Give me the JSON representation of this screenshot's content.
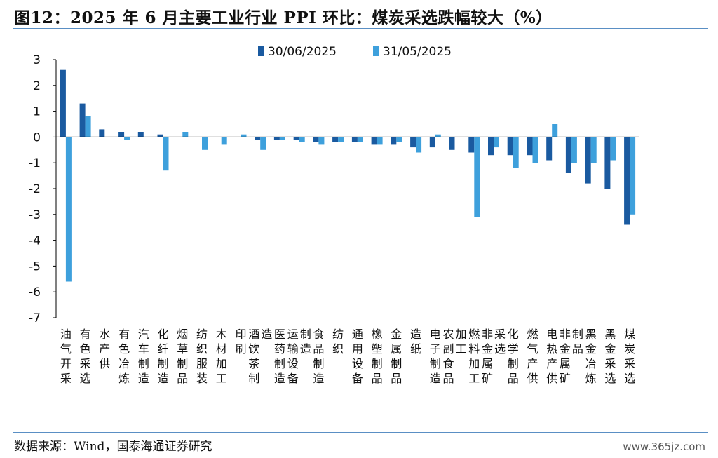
{
  "title": "图12：2025 年 6 月主要工业行业 PPI 环比：煤炭采选跌幅较大（%）",
  "source": "数据来源：Wind，国泰海通证券研究",
  "watermark": "www.365jz.com",
  "colors": {
    "series1": "#1a5aa0",
    "series2": "#3ea0dc",
    "rule": "#5a8fc4"
  },
  "chart_data": {
    "type": "bar",
    "ylim": [
      -7,
      3
    ],
    "yticks": [
      3,
      2,
      1,
      0,
      -1,
      -2,
      -3,
      -4,
      -5,
      -6,
      -7
    ],
    "grid": false,
    "legend_position": "top-center",
    "categories": [
      "油气开采",
      "有色采选",
      "水产供",
      "有色冶炼",
      "汽车制造",
      "化纤制造",
      "烟草制品",
      "纺织服装",
      "木材加工",
      "印刷",
      "酒饮茶制造",
      "医药制造",
      "运输设备制造",
      "食品制造",
      "纺织",
      "通用设备",
      "橡塑制品",
      "金属制品",
      "造纸",
      "电子制造",
      "农副食品加工",
      "燃料加工",
      "非金属矿采选",
      "化学制品",
      "燃气产供",
      "电热产供",
      "非金属矿制品",
      "黑金冶炼",
      "黑金采选",
      "煤炭采选"
    ],
    "series": [
      {
        "name": "30/06/2025",
        "values": [
          2.6,
          1.3,
          0.3,
          0.2,
          0.2,
          0.1,
          0,
          0,
          0,
          0,
          -0.1,
          -0.1,
          -0.1,
          -0.2,
          -0.2,
          -0.2,
          -0.3,
          -0.3,
          -0.4,
          -0.4,
          -0.5,
          -0.6,
          -0.7,
          -0.7,
          -0.7,
          -0.9,
          -1.4,
          -1.8,
          -2.0,
          -3.4
        ]
      },
      {
        "name": "31/05/2025",
        "values": [
          -5.6,
          0.8,
          0,
          -0.1,
          0,
          -1.3,
          0.2,
          -0.5,
          -0.3,
          0.1,
          -0.5,
          -0.1,
          -0.2,
          -0.3,
          -0.2,
          -0.2,
          -0.3,
          -0.2,
          -0.6,
          0.1,
          0,
          -3.1,
          -0.4,
          -1.2,
          -1.0,
          0.5,
          -1.0,
          -1.0,
          -0.9,
          -3.0
        ]
      }
    ]
  }
}
